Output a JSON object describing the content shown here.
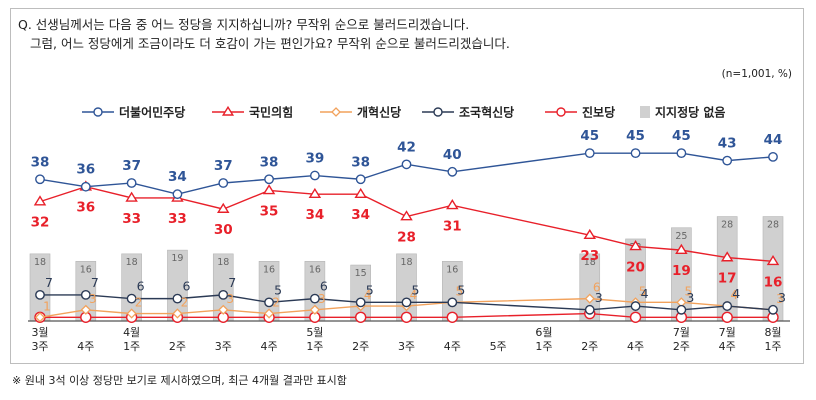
{
  "question_line1": "Q. 선생님께서는 다음 중 어느 정당을 지지하십니까? 무작위 순으로 불러드리겠습니다.",
  "question_line2": "그럼, 어느 정당에게 조금이라도 더 호감이 가는 편인가요? 무작위 순으로 불러드리겠습니다.",
  "sample_note": "(n=1,001, %)",
  "footnote": "※ 원내 3석 이상 정당만 보기로 제시하였으며, 최근 4개월 결과만 표시함",
  "chart_data": {
    "type": "line",
    "x_months": [
      "3월",
      "",
      "4월",
      "",
      "",
      "",
      "5월",
      "",
      "",
      "",
      "",
      "6월",
      "",
      "",
      "7월",
      "7월",
      "8월"
    ],
    "x_weeks": [
      "3주",
      "4주",
      "1주",
      "2주",
      "3주",
      "4주",
      "1주",
      "2주",
      "3주",
      "4주",
      "5주",
      "1주",
      "2주",
      "4주",
      "2주",
      "4주",
      "1주"
    ],
    "ylim": [
      0,
      50
    ],
    "series": [
      {
        "name": "더불어민주당",
        "color": "#2f5597",
        "marker": "circle",
        "values": [
          38,
          36,
          37,
          34,
          37,
          38,
          39,
          38,
          42,
          40,
          null,
          null,
          45,
          45,
          45,
          43,
          44
        ]
      },
      {
        "name": "국민의힘",
        "color": "#e8202a",
        "marker": "triangle",
        "values": [
          32,
          36,
          33,
          33,
          30,
          35,
          34,
          34,
          28,
          31,
          null,
          null,
          23,
          20,
          19,
          17,
          16
        ]
      },
      {
        "name": "개혁신당",
        "color": "#f2a25c",
        "marker": "diamond",
        "values": [
          1,
          3,
          2,
          2,
          3,
          2,
          3,
          4,
          4,
          5,
          null,
          null,
          6,
          5,
          5,
          4,
          3
        ]
      },
      {
        "name": "조국혁신당",
        "color": "#2b3a55",
        "marker": "circle",
        "values": [
          7,
          7,
          6,
          6,
          7,
          5,
          6,
          5,
          5,
          5,
          null,
          null,
          3,
          4,
          3,
          4,
          3
        ]
      },
      {
        "name": "진보당",
        "color": "#e8202a",
        "marker": "circle",
        "values": [
          1,
          1,
          1,
          1,
          1,
          1,
          1,
          1,
          1,
          1,
          null,
          null,
          2,
          1,
          1,
          1,
          1
        ]
      }
    ],
    "bars": {
      "name": "지지정당 없음",
      "color": "#d0d0d0",
      "values": [
        18,
        16,
        18,
        19,
        18,
        16,
        16,
        15,
        18,
        16,
        null,
        null,
        18,
        22,
        25,
        28,
        28
      ]
    },
    "value_labels": {
      "더불어민주당": [
        "38",
        "36",
        "37",
        "34",
        "37",
        "38",
        "39",
        "38",
        "42",
        "40",
        "",
        "",
        "45",
        "45",
        "45",
        "43",
        "44"
      ],
      "국민의힘": [
        "32",
        "36",
        "33",
        "33",
        "30",
        "35",
        "34",
        "34",
        "28",
        "31",
        "",
        "",
        "23",
        "20",
        "19",
        "17",
        "16"
      ],
      "개혁신당": [
        "1",
        "3",
        "2",
        "2",
        "3",
        "2",
        "3",
        "4",
        "4",
        "5",
        "",
        "",
        "6",
        "5",
        "5",
        "4",
        "3"
      ],
      "조국혁신당": [
        "7",
        "7",
        "6",
        "6",
        "7",
        "5",
        "6",
        "5",
        "5",
        "5",
        "",
        "",
        "3",
        "4",
        "3",
        "4",
        "3"
      ],
      "지지정당 없음": [
        "18",
        "16",
        "18",
        "19",
        "18",
        "16",
        "16",
        "15",
        "18",
        "16",
        "",
        "",
        "18",
        "22",
        "25",
        "28",
        "28"
      ]
    }
  }
}
